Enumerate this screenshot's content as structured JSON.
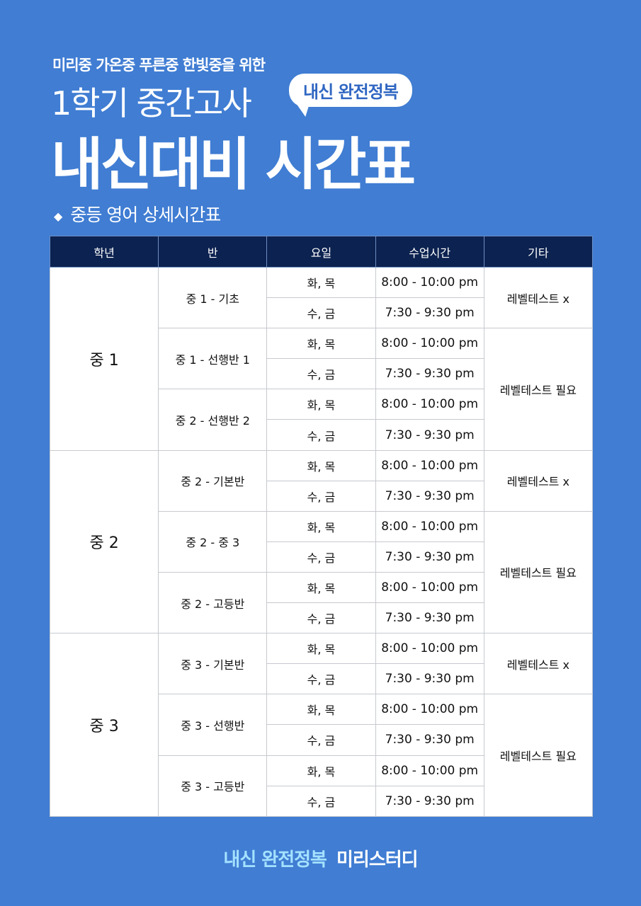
{
  "header": {
    "subtitle": "미리중 가온중 푸른중 한빛중을 위한",
    "title_line1": "1학기 중간고사",
    "badge": "내신 완전정복",
    "title_line2": "내신대비 시간표",
    "section_icon": "diamond-icon",
    "section_title": "중등 영어 상세시간표"
  },
  "table": {
    "headers": [
      "학년",
      "반",
      "요일",
      "수업시간",
      "기타"
    ],
    "grades": [
      {
        "grade": "중 1",
        "classes": [
          {
            "name": "중 1 - 기초",
            "note": "레벨테스트 x",
            "note_span": 1
          },
          {
            "name": "중 1 - 선행반 1",
            "note": "레벨테스트 필요",
            "note_span": 2
          },
          {
            "name": "중 2 - 선행반 2"
          }
        ]
      },
      {
        "grade": "중 2",
        "classes": [
          {
            "name": "중 2 - 기본반",
            "note": "레벨테스트 x",
            "note_span": 1
          },
          {
            "name": "중 2 - 중 3",
            "note": "레벨테스트 필요",
            "note_span": 2
          },
          {
            "name": "중 2 - 고등반"
          }
        ]
      },
      {
        "grade": "중 3",
        "classes": [
          {
            "name": "중 3 - 기본반",
            "note": "레벨테스트 x",
            "note_span": 1
          },
          {
            "name": "중 3 - 선행반",
            "note": "레벨테스트 필요",
            "note_span": 2
          },
          {
            "name": "중 3 - 고등반"
          }
        ]
      }
    ],
    "sessions": [
      {
        "days": "화, 목",
        "time": "8:00 - 10:00 pm"
      },
      {
        "days": "수, 금",
        "time": "7:30 - 9:30 pm"
      }
    ]
  },
  "footer": {
    "slogan": "내신 완전정복",
    "brand": "미리스터디"
  },
  "colors": {
    "background": "#407dd3",
    "header_bg": "#0c2250",
    "footer_accent": "#a4e1ff"
  }
}
